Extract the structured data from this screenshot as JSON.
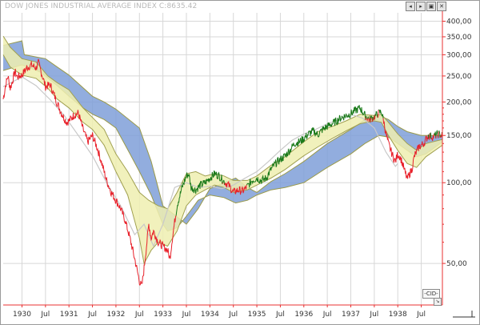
{
  "title": "DOW JONES INDUSTRIAL AVERAGE INDEX C:8635.42",
  "toolbar": {
    "icons": [
      "arrow-left-icon",
      "arrow-right-icon",
      "window-icon",
      "close-icon"
    ],
    "glyphs": [
      "◂",
      "▸",
      "▣",
      "✕"
    ]
  },
  "corner": {
    "label": "-CID-",
    "resize_glyph": "↘"
  },
  "colors": {
    "cloud": "#7f9fd8",
    "cloud_edge": "#9a9a4a",
    "band": "#eeeeb0",
    "band_edge": "#a0a050",
    "bear": "#e8202a",
    "bull": "#1a7a1a",
    "lag": "#c8c8c8",
    "axis": "#e83030",
    "grid": "#d7d7d7"
  },
  "chart_data": {
    "type": "line",
    "title": "DOW JONES INDUSTRIAL AVERAGE INDEX C:8635.42",
    "yscale": "log",
    "ylim": [
      35,
      430
    ],
    "xlim": [
      1929.6,
      1938.95
    ],
    "y_ticks": [
      {
        "value": 400,
        "label": "400,00"
      },
      {
        "value": 350,
        "label": "350,00"
      },
      {
        "value": 300,
        "label": "300,00"
      },
      {
        "value": 250,
        "label": "250,00"
      },
      {
        "value": 200,
        "label": "200,00"
      },
      {
        "value": 150,
        "label": "150,00"
      },
      {
        "value": 100,
        "label": "100,00"
      },
      {
        "value": 50,
        "label": "50,00"
      }
    ],
    "x_ticks": [
      {
        "value": 1930.0,
        "label": "1930"
      },
      {
        "value": 1930.5,
        "label": "Jul"
      },
      {
        "value": 1931.0,
        "label": "1931"
      },
      {
        "value": 1931.5,
        "label": "Jul"
      },
      {
        "value": 1932.0,
        "label": "1932"
      },
      {
        "value": 1932.5,
        "label": "Jul"
      },
      {
        "value": 1933.0,
        "label": "1933"
      },
      {
        "value": 1933.5,
        "label": "Jul"
      },
      {
        "value": 1934.0,
        "label": "1934"
      },
      {
        "value": 1934.5,
        "label": "Jul"
      },
      {
        "value": 1935.0,
        "label": "1935"
      },
      {
        "value": 1935.5,
        "label": "Jul"
      },
      {
        "value": 1936.0,
        "label": "1936"
      },
      {
        "value": 1936.5,
        "label": "Jul"
      },
      {
        "value": 1937.0,
        "label": "1937"
      },
      {
        "value": 1937.5,
        "label": "Jul"
      },
      {
        "value": 1938.0,
        "label": "1938"
      },
      {
        "value": 1938.5,
        "label": "Jul"
      }
    ],
    "price": [
      [
        1929.6,
        205
      ],
      [
        1929.65,
        230
      ],
      [
        1929.7,
        250
      ],
      [
        1929.75,
        225
      ],
      [
        1929.8,
        240
      ],
      [
        1929.85,
        260
      ],
      [
        1929.9,
        248
      ],
      [
        1930.0,
        252
      ],
      [
        1930.1,
        268
      ],
      [
        1930.2,
        275
      ],
      [
        1930.3,
        268
      ],
      [
        1930.35,
        280
      ],
      [
        1930.45,
        245
      ],
      [
        1930.5,
        228
      ],
      [
        1930.6,
        232
      ],
      [
        1930.65,
        220
      ],
      [
        1930.75,
        198
      ],
      [
        1930.85,
        180
      ],
      [
        1930.95,
        168
      ],
      [
        1931.0,
        170
      ],
      [
        1931.1,
        178
      ],
      [
        1931.2,
        182
      ],
      [
        1931.3,
        158
      ],
      [
        1931.4,
        142
      ],
      [
        1931.5,
        150
      ],
      [
        1931.6,
        135
      ],
      [
        1931.7,
        118
      ],
      [
        1931.8,
        102
      ],
      [
        1931.9,
        92
      ],
      [
        1932.0,
        86
      ],
      [
        1932.1,
        80
      ],
      [
        1932.2,
        72
      ],
      [
        1932.3,
        62
      ],
      [
        1932.4,
        52
      ],
      [
        1932.5,
        43
      ],
      [
        1932.55,
        41
      ],
      [
        1932.6,
        48
      ],
      [
        1932.65,
        58
      ],
      [
        1932.7,
        70
      ],
      [
        1932.75,
        62
      ],
      [
        1932.8,
        66
      ],
      [
        1932.9,
        60
      ],
      [
        1933.0,
        58
      ],
      [
        1933.1,
        56
      ],
      [
        1933.15,
        52
      ],
      [
        1933.2,
        62
      ],
      [
        1933.3,
        82
      ],
      [
        1933.4,
        95
      ],
      [
        1933.5,
        106
      ],
      [
        1933.55,
        108
      ],
      [
        1933.6,
        96
      ],
      [
        1933.7,
        94
      ],
      [
        1933.8,
        98
      ],
      [
        1933.9,
        100
      ],
      [
        1934.0,
        104
      ],
      [
        1934.1,
        108
      ],
      [
        1934.2,
        106
      ],
      [
        1934.3,
        101
      ],
      [
        1934.4,
        98
      ],
      [
        1934.5,
        92
      ],
      [
        1934.6,
        94
      ],
      [
        1934.7,
        93
      ],
      [
        1934.8,
        97
      ],
      [
        1934.9,
        102
      ],
      [
        1935.0,
        104
      ],
      [
        1935.1,
        102
      ],
      [
        1935.2,
        104
      ],
      [
        1935.3,
        112
      ],
      [
        1935.4,
        118
      ],
      [
        1935.5,
        122
      ],
      [
        1935.6,
        126
      ],
      [
        1935.7,
        132
      ],
      [
        1935.8,
        140
      ],
      [
        1935.9,
        142
      ],
      [
        1936.0,
        146
      ],
      [
        1936.1,
        152
      ],
      [
        1936.2,
        156
      ],
      [
        1936.3,
        151
      ],
      [
        1936.4,
        158
      ],
      [
        1936.5,
        162
      ],
      [
        1936.6,
        166
      ],
      [
        1936.7,
        170
      ],
      [
        1936.8,
        175
      ],
      [
        1936.9,
        178
      ],
      [
        1937.0,
        181
      ],
      [
        1937.1,
        186
      ],
      [
        1937.2,
        190
      ],
      [
        1937.3,
        178
      ],
      [
        1937.4,
        172
      ],
      [
        1937.5,
        176
      ],
      [
        1937.6,
        182
      ],
      [
        1937.65,
        184
      ],
      [
        1937.7,
        170
      ],
      [
        1937.75,
        152
      ],
      [
        1937.8,
        140
      ],
      [
        1937.9,
        125
      ],
      [
        1937.95,
        120
      ],
      [
        1938.0,
        128
      ],
      [
        1938.05,
        125
      ],
      [
        1938.1,
        118
      ],
      [
        1938.15,
        110
      ],
      [
        1938.2,
        103
      ],
      [
        1938.25,
        108
      ],
      [
        1938.3,
        112
      ],
      [
        1938.35,
        125
      ],
      [
        1938.45,
        136
      ],
      [
        1938.55,
        140
      ],
      [
        1938.65,
        150
      ],
      [
        1938.75,
        148
      ],
      [
        1938.85,
        152
      ],
      [
        1938.95,
        150
      ]
    ],
    "cloud_upper": [
      [
        1929.6,
        325
      ],
      [
        1930.0,
        338
      ],
      [
        1930.05,
        300
      ],
      [
        1930.5,
        290
      ],
      [
        1930.75,
        270
      ],
      [
        1931.0,
        252
      ],
      [
        1931.5,
        210
      ],
      [
        1931.75,
        200
      ],
      [
        1932.0,
        188
      ],
      [
        1932.5,
        160
      ],
      [
        1932.75,
        120
      ],
      [
        1933.0,
        82
      ],
      [
        1933.2,
        77
      ],
      [
        1933.5,
        70
      ],
      [
        1933.75,
        80
      ],
      [
        1934.0,
        95
      ],
      [
        1934.3,
        100
      ],
      [
        1934.55,
        104
      ],
      [
        1934.8,
        96
      ],
      [
        1935.0,
        92
      ],
      [
        1935.3,
        101
      ],
      [
        1935.6,
        108
      ],
      [
        1936.0,
        120
      ],
      [
        1936.5,
        140
      ],
      [
        1937.0,
        158
      ],
      [
        1937.3,
        172
      ],
      [
        1937.6,
        178
      ],
      [
        1937.8,
        172
      ],
      [
        1938.0,
        162
      ],
      [
        1938.2,
        155
      ],
      [
        1938.5,
        150
      ],
      [
        1938.95,
        150
      ]
    ],
    "cloud_lower": [
      [
        1929.6,
        262
      ],
      [
        1930.0,
        275
      ],
      [
        1930.4,
        258
      ],
      [
        1930.75,
        230
      ],
      [
        1931.0,
        210
      ],
      [
        1931.3,
        190
      ],
      [
        1931.5,
        180
      ],
      [
        1931.75,
        172
      ],
      [
        1932.0,
        160
      ],
      [
        1932.3,
        128
      ],
      [
        1932.5,
        110
      ],
      [
        1932.75,
        90
      ],
      [
        1933.0,
        70
      ],
      [
        1933.1,
        66
      ],
      [
        1933.3,
        68
      ],
      [
        1933.5,
        75
      ],
      [
        1933.75,
        86
      ],
      [
        1934.0,
        90
      ],
      [
        1934.3,
        88
      ],
      [
        1934.55,
        84
      ],
      [
        1934.8,
        86
      ],
      [
        1935.0,
        90
      ],
      [
        1935.3,
        94
      ],
      [
        1935.6,
        96
      ],
      [
        1936.0,
        100
      ],
      [
        1936.5,
        114
      ],
      [
        1937.0,
        128
      ],
      [
        1937.3,
        140
      ],
      [
        1937.6,
        150
      ],
      [
        1937.8,
        148
      ],
      [
        1938.0,
        140
      ],
      [
        1938.2,
        132
      ],
      [
        1938.4,
        125
      ],
      [
        1938.6,
        128
      ],
      [
        1938.95,
        142
      ]
    ],
    "band_upper": [
      [
        1929.6,
        352
      ],
      [
        1929.75,
        320
      ],
      [
        1930.0,
        290
      ],
      [
        1930.3,
        282
      ],
      [
        1930.55,
        250
      ],
      [
        1930.75,
        236
      ],
      [
        1931.0,
        222
      ],
      [
        1931.3,
        190
      ],
      [
        1931.5,
        175
      ],
      [
        1931.75,
        158
      ],
      [
        1932.0,
        128
      ],
      [
        1932.25,
        110
      ],
      [
        1932.5,
        92
      ],
      [
        1932.7,
        86
      ],
      [
        1932.9,
        82
      ],
      [
        1933.1,
        80
      ],
      [
        1933.3,
        92
      ],
      [
        1933.5,
        108
      ],
      [
        1933.7,
        110
      ],
      [
        1933.9,
        106
      ],
      [
        1934.1,
        108
      ],
      [
        1934.3,
        106
      ],
      [
        1934.5,
        102
      ],
      [
        1934.8,
        102
      ],
      [
        1935.0,
        106
      ],
      [
        1935.3,
        116
      ],
      [
        1935.6,
        125
      ],
      [
        1936.0,
        142
      ],
      [
        1936.3,
        155
      ],
      [
        1936.6,
        162
      ],
      [
        1936.9,
        170
      ],
      [
        1937.2,
        180
      ],
      [
        1937.5,
        178
      ],
      [
        1937.65,
        180
      ],
      [
        1937.8,
        168
      ],
      [
        1938.0,
        152
      ],
      [
        1938.2,
        140
      ],
      [
        1938.4,
        132
      ],
      [
        1938.6,
        140
      ],
      [
        1938.95,
        145
      ]
    ],
    "band_lower": [
      [
        1929.6,
        300
      ],
      [
        1929.75,
        270
      ],
      [
        1930.0,
        252
      ],
      [
        1930.3,
        245
      ],
      [
        1930.55,
        225
      ],
      [
        1930.75,
        205
      ],
      [
        1931.0,
        190
      ],
      [
        1931.3,
        168
      ],
      [
        1931.5,
        158
      ],
      [
        1931.75,
        138
      ],
      [
        1932.0,
        110
      ],
      [
        1932.25,
        90
      ],
      [
        1932.5,
        62
      ],
      [
        1932.6,
        50
      ],
      [
        1932.75,
        56
      ],
      [
        1932.9,
        60
      ],
      [
        1933.1,
        58
      ],
      [
        1933.3,
        66
      ],
      [
        1933.5,
        82
      ],
      [
        1933.7,
        90
      ],
      [
        1933.9,
        94
      ],
      [
        1934.1,
        98
      ],
      [
        1934.3,
        96
      ],
      [
        1934.5,
        92
      ],
      [
        1934.8,
        94
      ],
      [
        1935.0,
        98
      ],
      [
        1935.3,
        104
      ],
      [
        1935.6,
        112
      ],
      [
        1936.0,
        126
      ],
      [
        1936.3,
        136
      ],
      [
        1936.6,
        146
      ],
      [
        1936.9,
        156
      ],
      [
        1937.2,
        166
      ],
      [
        1937.5,
        170
      ],
      [
        1937.65,
        168
      ],
      [
        1937.8,
        150
      ],
      [
        1938.0,
        132
      ],
      [
        1938.2,
        118
      ],
      [
        1938.4,
        114
      ],
      [
        1938.6,
        125
      ],
      [
        1938.95,
        138
      ]
    ],
    "lagging_span": [
      [
        1929.6,
        228
      ],
      [
        1930.0,
        248
      ],
      [
        1930.3,
        230
      ],
      [
        1930.6,
        204
      ],
      [
        1930.9,
        178
      ],
      [
        1931.2,
        150
      ],
      [
        1931.5,
        126
      ],
      [
        1931.8,
        100
      ],
      [
        1932.1,
        82
      ],
      [
        1932.4,
        64
      ],
      [
        1932.6,
        70
      ],
      [
        1932.8,
        58
      ],
      [
        1933.0,
        70
      ],
      [
        1933.25,
        96
      ],
      [
        1933.5,
        100
      ],
      [
        1933.75,
        96
      ],
      [
        1934.0,
        97
      ],
      [
        1934.25,
        95
      ],
      [
        1934.5,
        98
      ],
      [
        1934.75,
        104
      ],
      [
        1935.0,
        110
      ],
      [
        1935.25,
        120
      ],
      [
        1935.5,
        132
      ],
      [
        1935.75,
        144
      ],
      [
        1936.0,
        152
      ],
      [
        1936.25,
        158
      ],
      [
        1936.5,
        166
      ],
      [
        1936.75,
        172
      ],
      [
        1937.0,
        180
      ],
      [
        1937.25,
        174
      ],
      [
        1937.5,
        160
      ],
      [
        1937.75,
        130
      ],
      [
        1937.95,
        115
      ],
      [
        1938.0,
        118
      ]
    ]
  }
}
